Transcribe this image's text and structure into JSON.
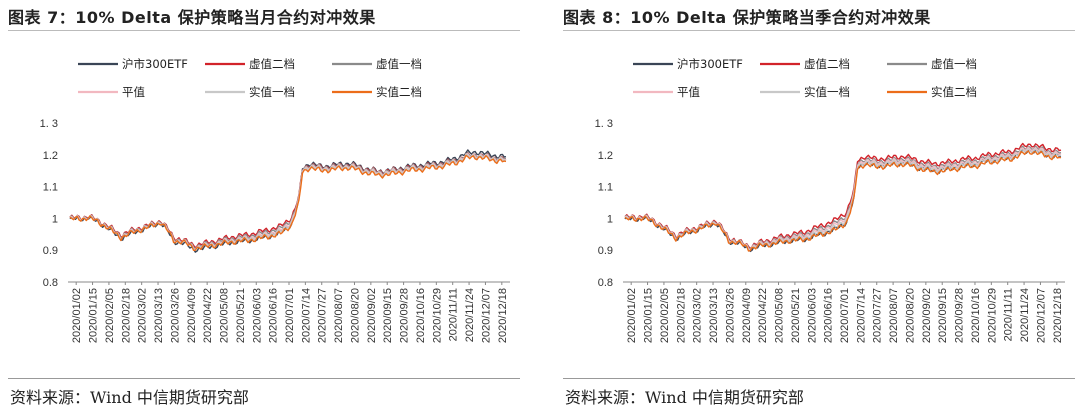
{
  "charts": [
    {
      "title": "图表 7：10% Delta 保护策略当月合约对冲效果",
      "source": "资料来源：Wind 中信期货研究部",
      "chart_data": {
        "type": "line",
        "ylim": [
          0.8,
          1.3
        ],
        "yticks": [
          0.8,
          0.9,
          1,
          1.1,
          1.2,
          1.3
        ],
        "ytick_labels": [
          "0.8",
          "0.9",
          "1",
          "1.1",
          "1.2",
          "1. 3"
        ],
        "xtick_labels": [
          "2020/01/02",
          "2020/01/15",
          "2020/02/05",
          "2020/02/18",
          "2020/03/02",
          "2020/03/13",
          "2020/03/26",
          "2020/04/09",
          "2020/04/22",
          "2020/05/08",
          "2020/05/21",
          "2020/06/03",
          "2020/06/16",
          "2020/07/01",
          "2020/07/14",
          "2020/07/27",
          "2020/08/07",
          "2020/08/20",
          "2020/09/02",
          "2020/09/15",
          "2020/09/28",
          "2020/10/16",
          "2020/10/29",
          "2020/11/11",
          "2020/11/24",
          "2020/12/07",
          "2020/12/18"
        ],
        "grid": false,
        "legend_position": "top",
        "base_x": [
          0,
          6,
          10,
          14,
          20,
          28,
          36,
          44,
          50,
          54,
          57,
          62,
          68,
          74,
          82,
          90,
          98,
          106,
          116,
          122,
          126,
          128,
          132,
          138,
          146,
          154,
          162,
          170,
          178,
          186,
          194,
          200,
          206,
          212,
          218,
          224,
          232,
          240
        ],
        "base_y": [
          1.0,
          1.0,
          1.005,
          0.995,
          0.975,
          0.94,
          0.96,
          0.975,
          0.99,
          0.96,
          0.93,
          0.925,
          0.905,
          0.91,
          0.92,
          0.93,
          0.935,
          0.945,
          0.96,
          0.99,
          1.06,
          1.16,
          1.175,
          1.165,
          1.17,
          1.175,
          1.16,
          1.15,
          1.155,
          1.165,
          1.17,
          1.175,
          1.18,
          1.19,
          1.205,
          1.21,
          1.2,
          1.195
        ],
        "series": [
          {
            "name": "沪市300ETF",
            "color": "#3a4556",
            "width": 1.4,
            "offset": -0.005,
            "scale": 1.02
          },
          {
            "name": "虚值二档",
            "color": "#d2232a",
            "width": 1.4,
            "offset": 0.012,
            "scale": 0.9
          },
          {
            "name": "虚值一档",
            "color": "#8a8a8a",
            "width": 1.4,
            "offset": 0.006,
            "scale": 0.93
          },
          {
            "name": "平值",
            "color": "#f2b8c0",
            "width": 1.4,
            "offset": 0.0,
            "scale": 0.95
          },
          {
            "name": "实值一档",
            "color": "#c8c8c8",
            "width": 1.4,
            "offset": -0.004,
            "scale": 0.96
          },
          {
            "name": "实值二档",
            "color": "#ec6d1a",
            "width": 1.4,
            "offset": -0.01,
            "scale": 0.97
          }
        ]
      }
    },
    {
      "title": "图表 8：10% Delta 保护策略当季合约对冲效果",
      "source": "资料来源：Wind 中信期货研究部",
      "chart_data": {
        "type": "line",
        "ylim": [
          0.8,
          1.3
        ],
        "yticks": [
          0.8,
          0.9,
          1,
          1.1,
          1.2,
          1.3
        ],
        "ytick_labels": [
          "0.8",
          "0.9",
          "1",
          "1.1",
          "1.2",
          "1. 3"
        ],
        "xtick_labels": [
          "2020/01/02",
          "2020/01/15",
          "2020/02/05",
          "2020/02/18",
          "2020/03/02",
          "2020/03/13",
          "2020/03/26",
          "2020/04/09",
          "2020/04/22",
          "2020/05/08",
          "2020/05/21",
          "2020/06/03",
          "2020/06/16",
          "2020/07/01",
          "2020/07/14",
          "2020/07/27",
          "2020/08/07",
          "2020/08/20",
          "2020/09/02",
          "2020/09/15",
          "2020/09/28",
          "2020/10/16",
          "2020/10/29",
          "2020/11/11",
          "2020/11/24",
          "2020/12/07",
          "2020/12/18"
        ],
        "grid": false,
        "legend_position": "top",
        "base_x": [
          0,
          6,
          10,
          14,
          20,
          28,
          36,
          44,
          50,
          54,
          57,
          62,
          68,
          74,
          82,
          90,
          98,
          106,
          116,
          122,
          126,
          128,
          132,
          138,
          146,
          154,
          162,
          170,
          178,
          186,
          194,
          200,
          206,
          212,
          218,
          224,
          232,
          240
        ],
        "base_y": [
          1.0,
          1.0,
          1.005,
          0.995,
          0.975,
          0.94,
          0.96,
          0.975,
          0.99,
          0.96,
          0.93,
          0.925,
          0.905,
          0.915,
          0.925,
          0.935,
          0.94,
          0.955,
          0.975,
          1.0,
          1.07,
          1.17,
          1.185,
          1.175,
          1.18,
          1.185,
          1.17,
          1.16,
          1.165,
          1.175,
          1.18,
          1.19,
          1.195,
          1.2,
          1.215,
          1.225,
          1.21,
          1.205
        ],
        "series": [
          {
            "name": "沪市300ETF",
            "color": "#3a4556",
            "width": 1.4,
            "offset": -0.01,
            "scale": 1.0
          },
          {
            "name": "虚值二档",
            "color": "#d2232a",
            "width": 1.4,
            "offset": 0.02,
            "scale": 0.95
          },
          {
            "name": "虚值一档",
            "color": "#8a8a8a",
            "width": 1.4,
            "offset": 0.01,
            "scale": 0.96
          },
          {
            "name": "平值",
            "color": "#f2b8c0",
            "width": 1.4,
            "offset": 0.004,
            "scale": 0.97
          },
          {
            "name": "实值一档",
            "color": "#c8c8c8",
            "width": 1.4,
            "offset": -0.003,
            "scale": 0.98
          },
          {
            "name": "实值二档",
            "color": "#ec6d1a",
            "width": 1.4,
            "offset": -0.012,
            "scale": 0.99
          }
        ]
      }
    }
  ]
}
